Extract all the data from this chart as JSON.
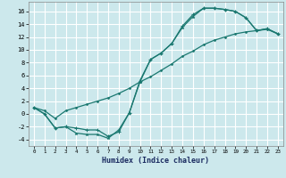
{
  "xlabel": "Humidex (Indice chaleur)",
  "bg_color": "#cce8ec",
  "grid_color": "#ffffff",
  "line_color": "#1a7870",
  "xlim": [
    -0.5,
    23.5
  ],
  "ylim": [
    -5,
    17.5
  ],
  "xticks": [
    0,
    1,
    2,
    3,
    4,
    5,
    6,
    7,
    8,
    9,
    10,
    11,
    12,
    13,
    14,
    15,
    16,
    17,
    18,
    19,
    20,
    21,
    22,
    23
  ],
  "yticks": [
    -4,
    -2,
    0,
    2,
    4,
    6,
    8,
    10,
    12,
    14,
    16
  ],
  "line1_x": [
    0,
    1,
    2,
    3,
    4,
    5,
    6,
    7,
    8,
    9,
    10,
    11,
    12,
    13,
    14,
    15,
    16,
    17,
    18,
    19,
    20,
    21,
    22,
    23
  ],
  "line1_y": [
    1.0,
    0.0,
    -2.2,
    -2.0,
    -3.0,
    -3.2,
    -3.2,
    -3.8,
    -2.5,
    0.2,
    5.0,
    8.5,
    9.5,
    11.0,
    13.5,
    15.2,
    16.5,
    16.5,
    16.3,
    16.0,
    15.0,
    13.0,
    13.3,
    12.5
  ],
  "line2_x": [
    0,
    1,
    2,
    3,
    4,
    5,
    6,
    7,
    8,
    9,
    10,
    11,
    12,
    13,
    14,
    15,
    16,
    17,
    18,
    19,
    20,
    21,
    22,
    23
  ],
  "line2_y": [
    1.0,
    0.0,
    -2.2,
    -2.0,
    -2.2,
    -2.5,
    -2.5,
    -3.5,
    -2.8,
    0.2,
    5.2,
    8.5,
    9.5,
    11.0,
    13.7,
    15.5,
    16.5,
    16.5,
    16.3,
    16.0,
    15.0,
    13.0,
    13.3,
    12.5
  ],
  "line3_x": [
    0,
    1,
    2,
    3,
    4,
    5,
    6,
    7,
    8,
    9,
    10,
    11,
    12,
    13,
    14,
    15,
    16,
    17,
    18,
    19,
    20,
    21,
    22,
    23
  ],
  "line3_y": [
    1.0,
    0.5,
    -0.7,
    0.5,
    1.0,
    1.5,
    2.0,
    2.5,
    3.2,
    4.0,
    5.0,
    5.8,
    6.8,
    7.8,
    9.0,
    9.8,
    10.8,
    11.5,
    12.0,
    12.5,
    12.8,
    13.0,
    13.2,
    12.5
  ]
}
